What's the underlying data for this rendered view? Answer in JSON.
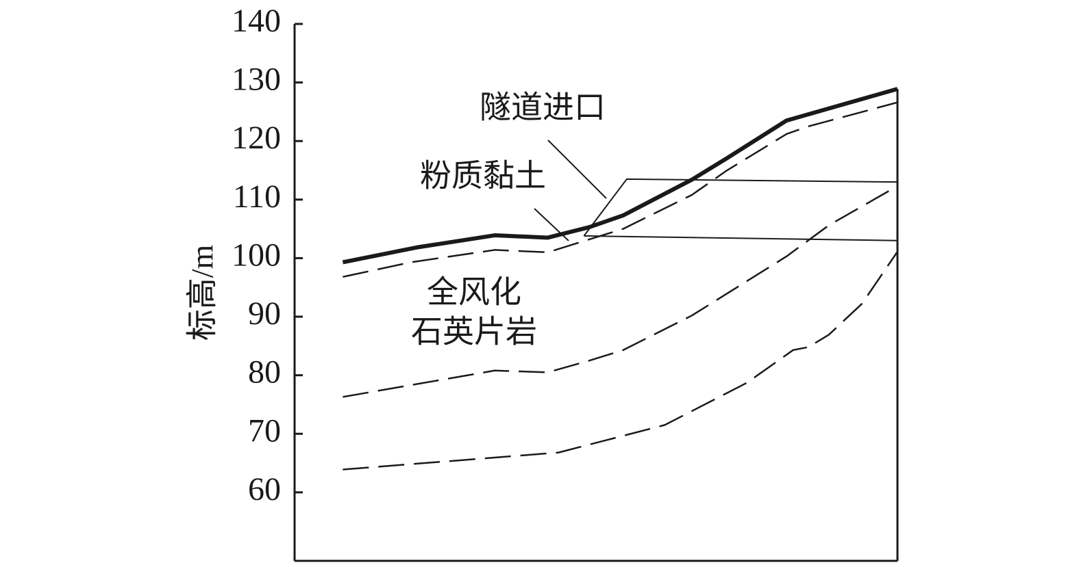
{
  "chart_data": {
    "type": "line",
    "ylabel": "标高/m",
    "ylim": [
      48.3,
      140
    ],
    "yticks": [
      60,
      70,
      80,
      90,
      100,
      110,
      120,
      130,
      140
    ],
    "xlim": [
      0,
      100
    ],
    "annotations": [
      "隧道进口",
      "粉质黏土",
      "全风化",
      "石英片岩"
    ],
    "series": [
      {
        "color": "#1a1a1a",
        "style": "solid",
        "linewidth": 6,
        "x": [
          8.0,
          20.1,
          33.2,
          42.0,
          48.9,
          54.5,
          65.9,
          71.6,
          81.6,
          100
        ],
        "values": [
          99.3,
          101.8,
          103.9,
          103.5,
          105.3,
          107.3,
          113.4,
          117.0,
          123.5,
          128.9
        ]
      },
      {
        "color": "#1a1a1a",
        "style": "dashed",
        "linewidth": 2.5,
        "x": [
          8.0,
          19.3,
          33.2,
          42.0,
          54.5,
          65.9,
          71.6,
          81.6,
          85.2,
          100
        ],
        "values": [
          96.8,
          99.3,
          101.4,
          101.0,
          105.0,
          110.8,
          114.9,
          121.2,
          122.5,
          126.6
        ]
      },
      {
        "color": "#1a1a1a",
        "style": "dashed",
        "linewidth": 2.5,
        "x": [
          8.0,
          33.2,
          42.0,
          48.9,
          54.5,
          65.9,
          81.6,
          88.6,
          100
        ],
        "values": [
          76.3,
          80.8,
          80.5,
          82.5,
          84.3,
          90.2,
          100.3,
          105.6,
          112.3
        ]
      },
      {
        "color": "#1a1a1a",
        "style": "dashed",
        "linewidth": 2.5,
        "x": [
          8.0,
          43.8,
          61.4,
          75.0,
          82.7,
          85.2,
          88.6,
          94.1,
          100
        ],
        "values": [
          63.9,
          66.8,
          71.5,
          78.7,
          84.3,
          84.8,
          86.9,
          92.2,
          101.1
        ]
      },
      {
        "color": "#1a1a1a",
        "style": "solid",
        "linewidth": 2,
        "x": [
          48.0,
          55.1,
          100,
          100,
          48.0
        ],
        "values": [
          103.8,
          113.5,
          113.0,
          103.0,
          103.8
        ]
      }
    ]
  }
}
